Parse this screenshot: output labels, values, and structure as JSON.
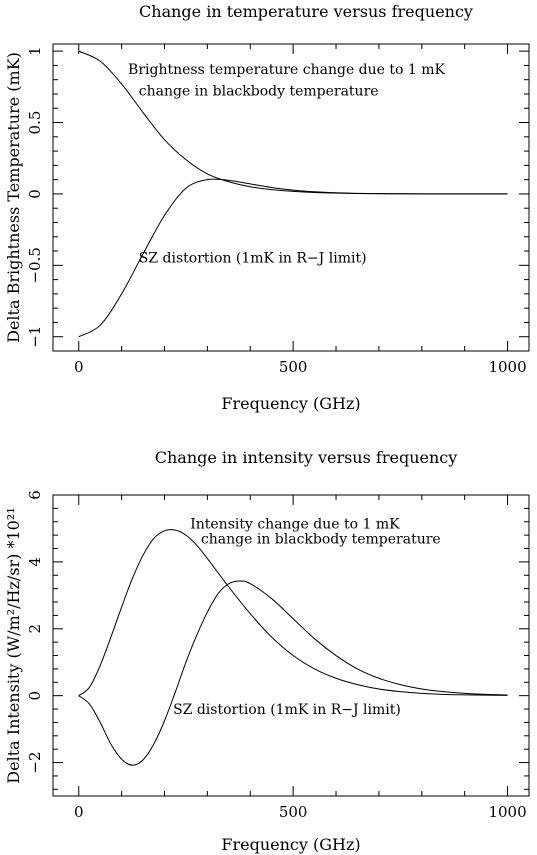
{
  "chart_data": [
    {
      "type": "line",
      "title": "Change in temperature versus frequency",
      "xlabel": "Frequency (GHz)",
      "ylabel": "Delta Brightness Temperature (mK)",
      "xlim": [
        -60,
        1050
      ],
      "ylim": [
        -1.1,
        1.05
      ],
      "xticks": [
        0,
        500,
        1000
      ],
      "xtick_labels": [
        "0",
        "500",
        "1000"
      ],
      "yticks": [
        -1,
        -0.5,
        0,
        0.5,
        1
      ],
      "ytick_labels": [
        "−1",
        "−0.5",
        "0",
        "0.5",
        "1"
      ],
      "grid": false,
      "annotations": [
        {
          "text": "Brightness temperature change due to 1 mK",
          "x": 115,
          "y": 0.84
        },
        {
          "text": "change in blackbody temperature",
          "x": 140,
          "y": 0.69
        },
        {
          "text": "SZ distortion (1mK in R−J limit)",
          "x": 140,
          "y": -0.48
        }
      ],
      "series": [
        {
          "x": [
            0,
            50,
            100,
            150,
            200,
            250,
            300,
            350,
            400,
            450,
            500,
            550,
            600,
            650,
            700,
            750,
            800,
            850,
            900,
            950,
            1000
          ],
          "y": [
            1.0,
            0.93,
            0.77,
            0.57,
            0.38,
            0.24,
            0.14,
            0.085,
            0.05,
            0.03,
            0.018,
            0.01,
            0.006,
            0.003,
            0.002,
            0.001,
            0.0006,
            0.0003,
            0.0002,
            0.0001,
            0.0
          ]
        },
        {
          "x": [
            0,
            50,
            100,
            150,
            200,
            250,
            300,
            350,
            400,
            450,
            500,
            550,
            600,
            650,
            700,
            750,
            800,
            850,
            900,
            950,
            1000
          ],
          "y": [
            -1.0,
            -0.92,
            -0.7,
            -0.42,
            -0.15,
            0.04,
            0.1,
            0.095,
            0.07,
            0.045,
            0.027,
            0.015,
            0.008,
            0.004,
            0.002,
            0.001,
            0.0006,
            0.0003,
            0.0001,
            0.0001,
            0.0
          ]
        }
      ]
    },
    {
      "type": "line",
      "title": "Change in intensity versus frequency",
      "xlabel": "Frequency (GHz)",
      "ylabel": "Delta Intensity (W/m²/Hz/sr) *10²¹",
      "xlim": [
        -60,
        1050
      ],
      "ylim": [
        -3,
        6
      ],
      "xticks": [
        0,
        500,
        1000
      ],
      "xtick_labels": [
        "0",
        "500",
        "1000"
      ],
      "yticks": [
        -2,
        0,
        2,
        4,
        6
      ],
      "ytick_labels": [
        "−2",
        "0",
        "2",
        "4",
        "6"
      ],
      "grid": false,
      "annotations": [
        {
          "text": "Intensity change due to 1 mK",
          "x": 260,
          "y": 5.0
        },
        {
          "text": "change in blackbody temperature",
          "x": 285,
          "y": 4.55
        },
        {
          "text": "SZ distortion (1mK in R−J limit)",
          "x": 220,
          "y": -0.55
        }
      ],
      "series": [
        {
          "x": [
            0,
            25,
            50,
            75,
            100,
            125,
            150,
            175,
            200,
            225,
            250,
            275,
            300,
            350,
            400,
            450,
            500,
            550,
            600,
            650,
            700,
            750,
            800,
            850,
            900,
            950,
            1000
          ],
          "y": [
            0.0,
            0.25,
            0.9,
            1.75,
            2.65,
            3.5,
            4.2,
            4.7,
            4.93,
            4.95,
            4.8,
            4.5,
            4.1,
            3.25,
            2.45,
            1.75,
            1.2,
            0.8,
            0.52,
            0.33,
            0.2,
            0.12,
            0.07,
            0.04,
            0.025,
            0.015,
            0.01
          ]
        },
        {
          "x": [
            0,
            25,
            50,
            75,
            100,
            125,
            150,
            175,
            200,
            225,
            250,
            275,
            300,
            325,
            350,
            375,
            400,
            450,
            500,
            550,
            600,
            650,
            700,
            750,
            800,
            850,
            900,
            950,
            1000
          ],
          "y": [
            0.0,
            -0.25,
            -0.8,
            -1.45,
            -1.9,
            -2.08,
            -1.92,
            -1.45,
            -0.75,
            0.1,
            1.0,
            1.8,
            2.5,
            3.05,
            3.35,
            3.43,
            3.35,
            2.9,
            2.3,
            1.7,
            1.2,
            0.8,
            0.52,
            0.33,
            0.2,
            0.12,
            0.07,
            0.04,
            0.02
          ]
        }
      ]
    }
  ]
}
